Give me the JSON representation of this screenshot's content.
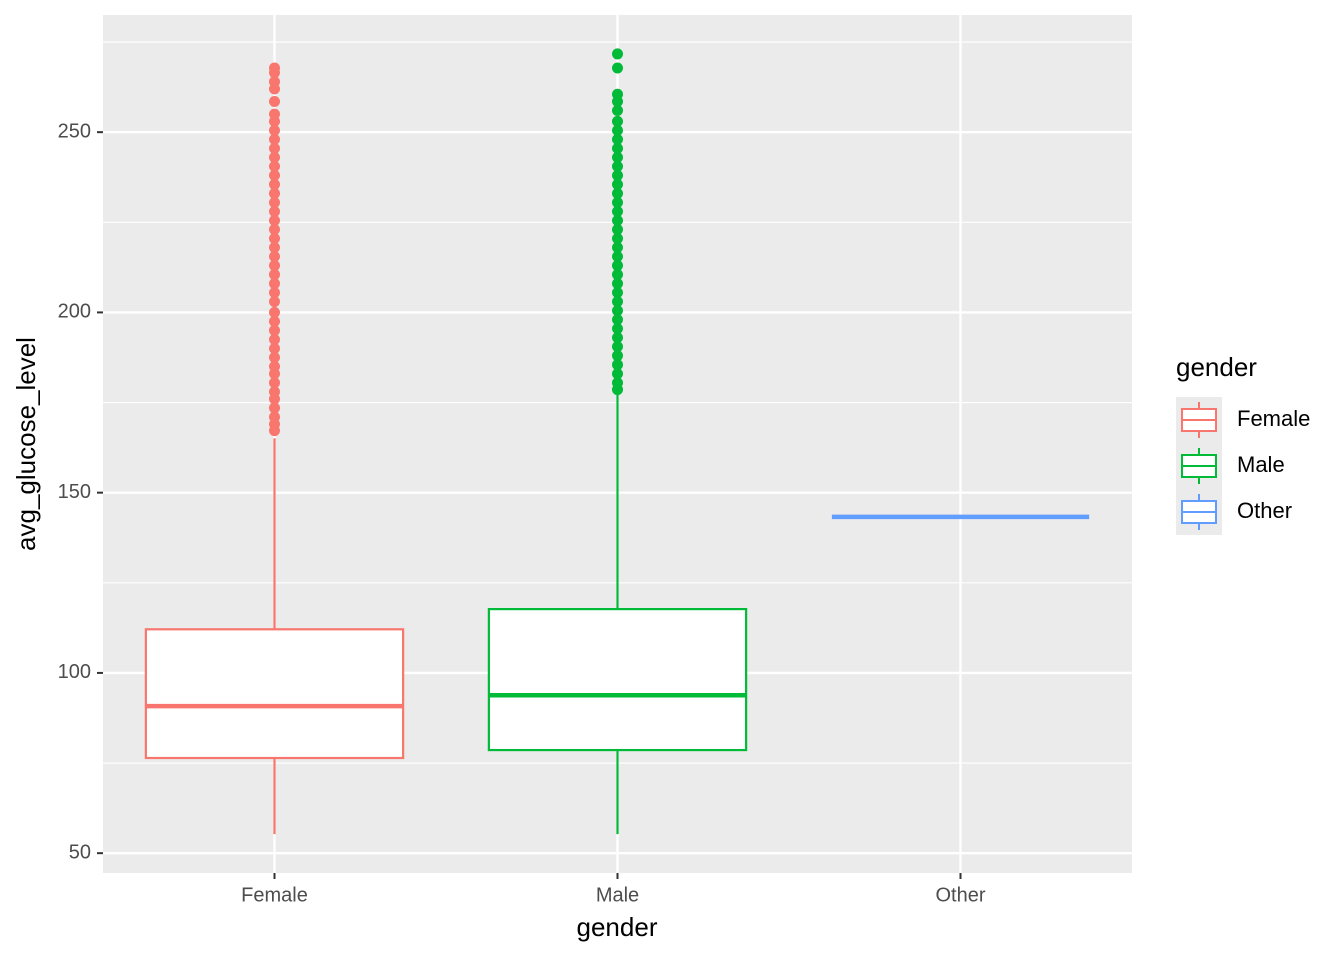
{
  "chart_data": {
    "type": "boxplot",
    "x_label": "gender",
    "y_label": "avg_glucose_level",
    "categories": [
      "Female",
      "Male",
      "Other"
    ],
    "legend_title": "gender",
    "legend_position": "right",
    "grid": true,
    "ylim": [
      44.5,
      282.5
    ],
    "yticks": [
      50,
      100,
      150,
      200,
      250
    ],
    "y_minor_ticks": [
      75,
      125,
      175,
      225,
      275
    ],
    "series": [
      {
        "name": "Female",
        "color": "#f8766d",
        "min": 55.3,
        "q1": 76.4,
        "median": 90.8,
        "q3": 112.1,
        "max": 165.1,
        "outliers": [
          167.2,
          169,
          171,
          173.5,
          176,
          178,
          180.5,
          183,
          185,
          187.5,
          190,
          192.5,
          195,
          197.5,
          200,
          203,
          205.5,
          208,
          210.5,
          213,
          215.5,
          218,
          220.5,
          223,
          225.5,
          228,
          230.5,
          233,
          235.5,
          238,
          240.5,
          243,
          245.5,
          248,
          250.5,
          253,
          255,
          258.5,
          262,
          264,
          266.5,
          267.8
        ]
      },
      {
        "name": "Male",
        "color": "#00ba38",
        "min": 55.3,
        "q1": 78.6,
        "median": 93.8,
        "q3": 117.7,
        "max": 178.4,
        "outliers": [
          178.6,
          180.5,
          183,
          185.5,
          188,
          190.5,
          193,
          195.5,
          198,
          200.5,
          203,
          205.5,
          208,
          210.5,
          213,
          215.5,
          218,
          220.5,
          223,
          225.5,
          228,
          230.5,
          233,
          235.5,
          238,
          240.5,
          243,
          245.5,
          248,
          250.5,
          253,
          256,
          258.5,
          260.5,
          267.8,
          271.7
        ]
      },
      {
        "name": "Other",
        "color": "#619cff",
        "min": 143.3,
        "q1": 143.3,
        "median": 143.3,
        "q3": 143.3,
        "max": 143.3,
        "outliers": []
      }
    ]
  }
}
